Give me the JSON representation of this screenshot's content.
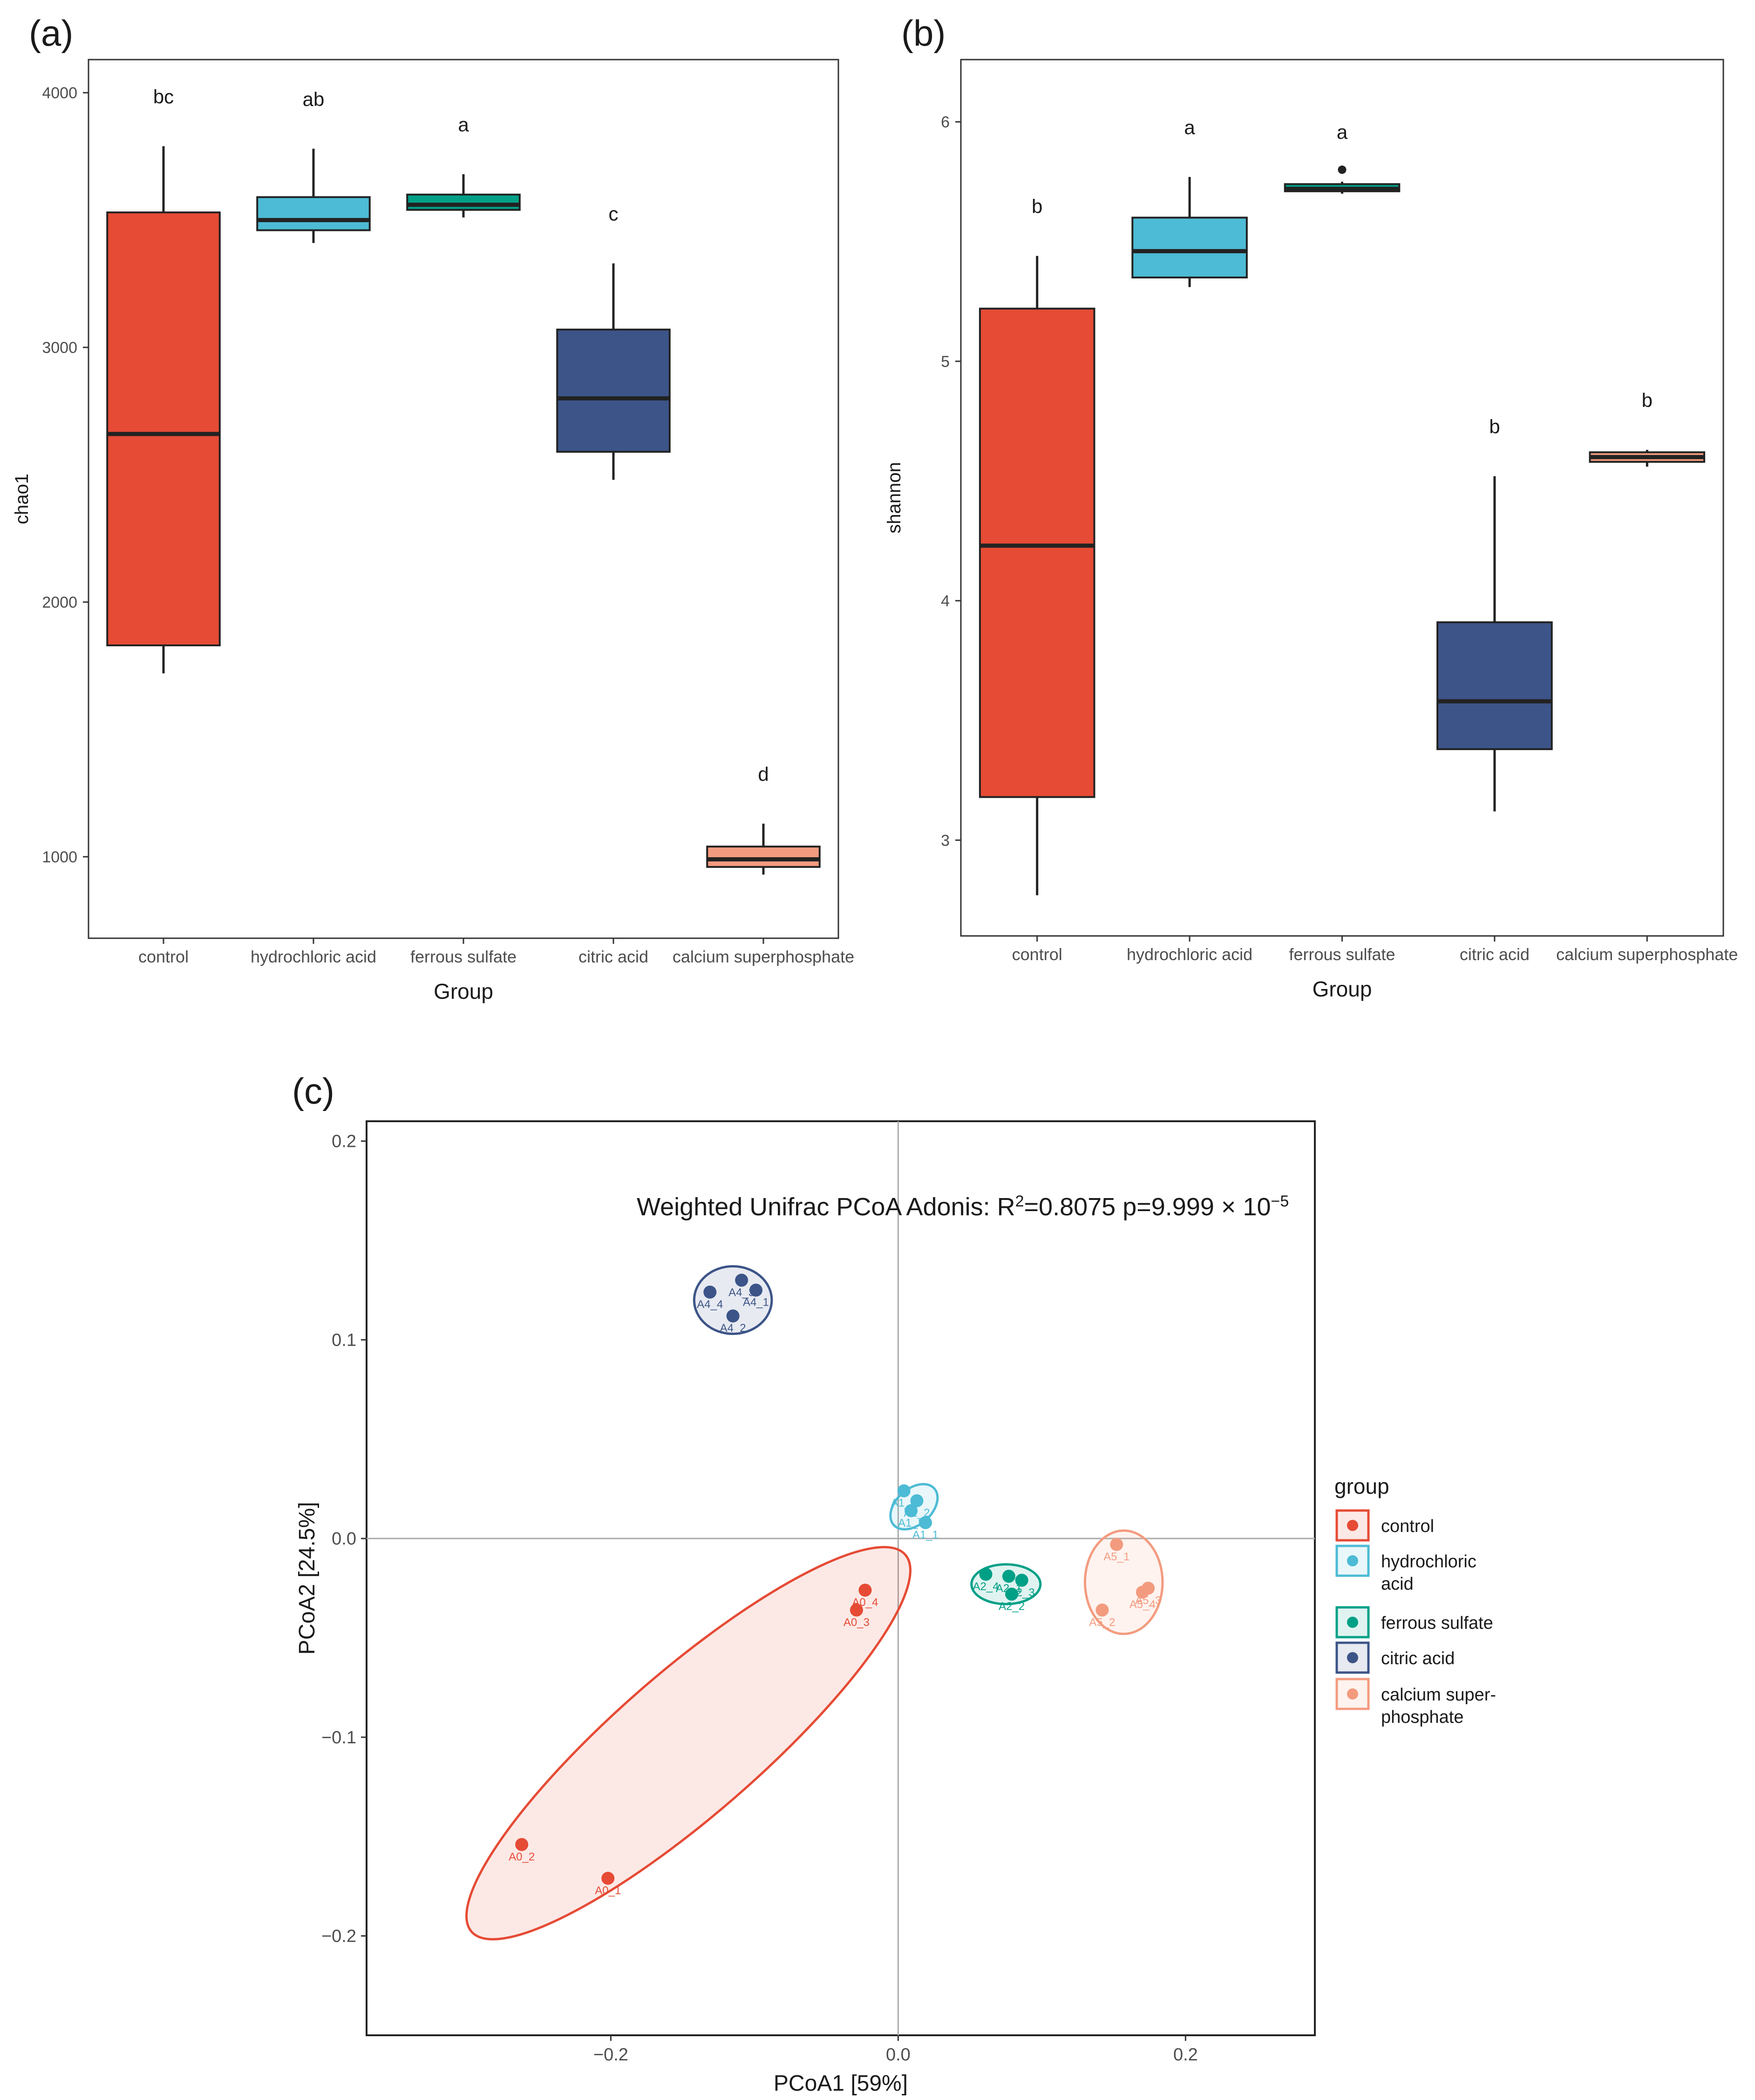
{
  "panels": {
    "a": "(a)",
    "b": "(b)",
    "c": "(c)"
  },
  "colors": {
    "control": "#e64b35",
    "hydrochloric acid": "#4dbbd5",
    "ferrous sulfate": "#00a087",
    "citric acid": "#3c5488",
    "calcium superphosphate": "#f39b7f"
  },
  "chart_data": [
    {
      "type": "box",
      "panel": "(a)",
      "xlabel": "Group",
      "ylabel": "chao1",
      "ylim": [
        680,
        4130
      ],
      "yticks": [
        1000,
        2000,
        3000,
        4000
      ],
      "categories": [
        "control",
        "hydrochloric acid",
        "ferrous sulfate",
        "citric acid",
        "calcium superphosphate"
      ],
      "boxes": [
        {
          "group": "control",
          "min": 1720,
          "q1": 1830,
          "median": 2660,
          "q3": 3530,
          "max": 3790,
          "letter": "bc",
          "outliers": []
        },
        {
          "group": "hydrochloric acid",
          "min": 3410,
          "q1": 3460,
          "median": 3500,
          "q3": 3590,
          "max": 3780,
          "letter": "ab",
          "outliers": []
        },
        {
          "group": "ferrous sulfate",
          "min": 3510,
          "q1": 3540,
          "median": 3560,
          "q3": 3600,
          "max": 3680,
          "letter": "a",
          "outliers": []
        },
        {
          "group": "citric acid",
          "min": 2480,
          "q1": 2590,
          "median": 2800,
          "q3": 3070,
          "max": 3330,
          "letter": "c",
          "outliers": []
        },
        {
          "group": "calcium superphosphate",
          "min": 930,
          "q1": 960,
          "median": 990,
          "q3": 1040,
          "max": 1130,
          "letter": "d",
          "outliers": []
        }
      ]
    },
    {
      "type": "box",
      "panel": "(b)",
      "xlabel": "Group",
      "ylabel": "shannon",
      "ylim": [
        2.6,
        6.26
      ],
      "yticks": [
        3,
        4,
        5,
        6
      ],
      "categories": [
        "control",
        "hydrochloric acid",
        "ferrous sulfate",
        "citric acid",
        "calcium superphosphate"
      ],
      "boxes": [
        {
          "group": "control",
          "min": 2.77,
          "q1": 3.18,
          "median": 4.23,
          "q3": 5.22,
          "max": 5.44,
          "letter": "b",
          "outliers": []
        },
        {
          "group": "hydrochloric acid",
          "min": 5.31,
          "q1": 5.35,
          "median": 5.46,
          "q3": 5.6,
          "max": 5.77,
          "letter": "a",
          "outliers": []
        },
        {
          "group": "ferrous sulfate",
          "min": 5.7,
          "q1": 5.71,
          "median": 5.72,
          "q3": 5.74,
          "max": 5.75,
          "letter": "a",
          "outliers": [
            5.8
          ]
        },
        {
          "group": "citric acid",
          "min": 3.12,
          "q1": 3.38,
          "median": 3.58,
          "q3": 3.91,
          "max": 4.52,
          "letter": "b",
          "outliers": []
        },
        {
          "group": "calcium superphosphate",
          "min": 4.56,
          "q1": 4.58,
          "median": 4.6,
          "q3": 4.62,
          "max": 4.63,
          "letter": "b",
          "outliers": []
        }
      ]
    },
    {
      "type": "scatter",
      "panel": "(c)",
      "title": "Weighted Unifrac PCoA   Adonis: R",
      "title_sup": "2",
      "title_rest": "=0.8075 p=9.999 × 10",
      "title_exp": "−5",
      "xlabel": "PCoA1   [59%]",
      "ylabel": "PCoA2   [24.5%]",
      "xlim": [
        -0.37,
        0.29
      ],
      "ylim": [
        -0.25,
        0.21
      ],
      "xticks": [
        -0.2,
        0.0,
        0.2
      ],
      "yticks": [
        -0.2,
        -0.1,
        0.0,
        0.1,
        0.2
      ],
      "xtick_labels": [
        "−0.2",
        "0.0",
        "0.2"
      ],
      "ytick_labels": [
        "−0.2",
        "−0.1",
        "0.0",
        "0.1",
        "0.2"
      ],
      "legend_title": "group",
      "legend_items": [
        "control",
        "hydrochloric acid",
        "ferrous sulfate",
        "citric acid",
        "calcium super-phosphate"
      ],
      "legend_lines": [
        [
          "control"
        ],
        [
          "hydrochloric",
          "acid"
        ],
        [
          "ferrous sulfate"
        ],
        [
          "citric acid"
        ],
        [
          "calcium super-",
          "phosphate"
        ]
      ],
      "series": [
        {
          "name": "control",
          "points": [
            {
              "x": -0.262,
              "y": -0.154,
              "label": "A0_2"
            },
            {
              "x": -0.202,
              "y": -0.171,
              "label": "A0_1"
            },
            {
              "x": -0.023,
              "y": -0.026,
              "label": "A0_4"
            },
            {
              "x": -0.029,
              "y": -0.036,
              "label": "A0_3"
            }
          ],
          "ellipse": {
            "cx": -0.146,
            "cy": -0.103,
            "rx": 0.2,
            "ry": 0.036,
            "angle_deg": 41
          }
        },
        {
          "name": "hydrochloric acid",
          "points": [
            {
              "x": 0.004,
              "y": 0.024,
              "label": "A1_4"
            },
            {
              "x": 0.009,
              "y": 0.014,
              "label": "A1_3"
            },
            {
              "x": 0.019,
              "y": 0.008,
              "label": "A1_1"
            },
            {
              "x": 0.013,
              "y": 0.019,
              "label": "A1_2"
            }
          ],
          "ellipse": {
            "cx": 0.011,
            "cy": 0.016,
            "rx": 0.019,
            "ry": 0.009,
            "angle_deg": 42
          }
        },
        {
          "name": "ferrous sulfate",
          "points": [
            {
              "x": 0.061,
              "y": -0.018,
              "label": "A2_4"
            },
            {
              "x": 0.077,
              "y": -0.019,
              "label": "A2_1"
            },
            {
              "x": 0.086,
              "y": -0.021,
              "label": "A2_3"
            },
            {
              "x": 0.079,
              "y": -0.028,
              "label": "A2_2"
            }
          ],
          "ellipse": {
            "cx": 0.075,
            "cy": -0.023,
            "rx": 0.024,
            "ry": 0.01,
            "angle_deg": 0
          }
        },
        {
          "name": "citric acid",
          "points": [
            {
              "x": -0.131,
              "y": 0.124,
              "label": "A4_4"
            },
            {
              "x": -0.109,
              "y": 0.13,
              "label": "A4_3"
            },
            {
              "x": -0.099,
              "y": 0.125,
              "label": "A4_1"
            },
            {
              "x": -0.115,
              "y": 0.112,
              "label": "A4_2"
            }
          ],
          "ellipse": {
            "cx": -0.115,
            "cy": 0.12,
            "rx": 0.027,
            "ry": 0.017,
            "angle_deg": 0
          }
        },
        {
          "name": "calcium superphosphate",
          "points": [
            {
              "x": 0.152,
              "y": -0.003,
              "label": "A5_1"
            },
            {
              "x": 0.174,
              "y": -0.025,
              "label": "A5_3"
            },
            {
              "x": 0.17,
              "y": -0.027,
              "label": "A5_4"
            },
            {
              "x": 0.142,
              "y": -0.036,
              "label": "A5_2"
            }
          ],
          "ellipse": {
            "cx": 0.157,
            "cy": -0.022,
            "rx": 0.027,
            "ry": 0.026,
            "angle_deg": 0
          }
        }
      ]
    }
  ]
}
